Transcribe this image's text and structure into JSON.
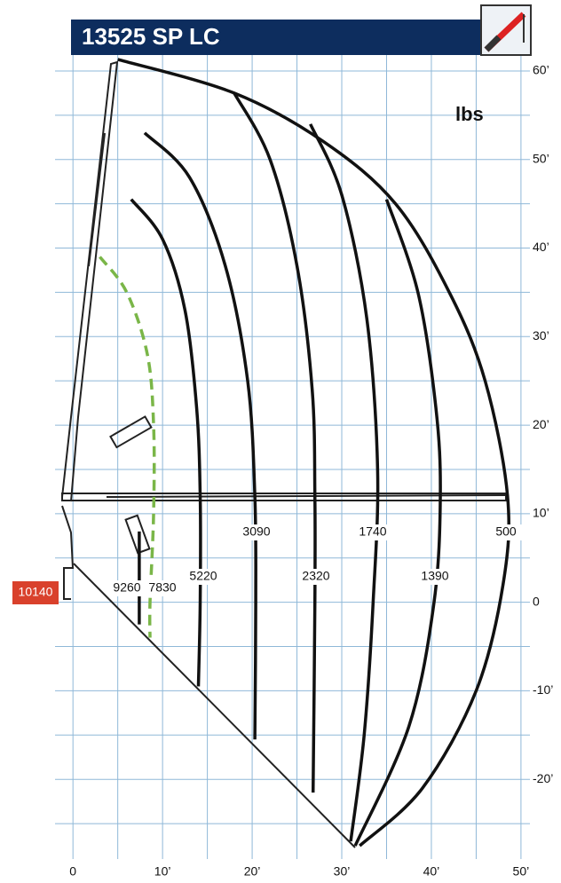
{
  "chart_data": {
    "type": "load-chart",
    "title": "13525 SP LC",
    "unit_label": "lbs",
    "base_label": "10140",
    "xlim": [
      -2,
      51
    ],
    "ylim": [
      -29,
      62
    ],
    "xticks": [
      0,
      {
        "value": 10,
        "label": "10’"
      },
      {
        "value": 20,
        "label": "20’"
      },
      {
        "value": 30,
        "label": "30’"
      },
      {
        "value": 40,
        "label": "40’"
      },
      {
        "value": 50,
        "label": "50’"
      }
    ],
    "yticks": [
      {
        "value": -20,
        "label": "-20’"
      },
      {
        "value": -10,
        "label": "-10’"
      },
      0,
      {
        "value": 10,
        "label": "10’"
      },
      {
        "value": 20,
        "label": "20’"
      },
      {
        "value": 30,
        "label": "30’"
      },
      {
        "value": 40,
        "label": "40’"
      },
      {
        "value": 50,
        "label": "50’"
      },
      {
        "value": 60,
        "label": "60’"
      }
    ],
    "grid": true,
    "grid_color": "#8fb8d8",
    "series": [
      {
        "name": "9260",
        "color": "#111111",
        "style": "solid",
        "x": [
          7.4,
          7.4
        ],
        "values": [
          8,
          -2.5
        ]
      },
      {
        "name": "7830",
        "color": "#7ab648",
        "style": "dashed",
        "x": [
          3,
          6,
          8.3,
          9,
          9,
          8.6,
          8.6
        ],
        "values": [
          39,
          35,
          28,
          20,
          10,
          0,
          -4
        ]
      },
      {
        "name": "5220",
        "color": "#111111",
        "style": "solid",
        "x": [
          6.5,
          10,
          12.5,
          13.8,
          14.2,
          14.2,
          14
        ],
        "values": [
          45.5,
          41,
          33,
          22,
          12,
          0,
          -9.5
        ]
      },
      {
        "name": "3090",
        "color": "#111111",
        "style": "solid",
        "x": [
          8,
          13,
          17,
          19.5,
          20.3,
          20.4,
          20.3
        ],
        "values": [
          53,
          48,
          38,
          25,
          12,
          0,
          -15.5
        ]
      },
      {
        "name": "2320",
        "color": "#111111",
        "style": "solid",
        "x": [
          18,
          22,
          25,
          26.7,
          27,
          27,
          26.8
        ],
        "values": [
          57.5,
          50,
          38,
          24,
          12,
          0,
          -21.5
        ]
      },
      {
        "name": "1740",
        "color": "#111111",
        "style": "solid",
        "x": [
          26.5,
          30,
          32.8,
          34,
          33.5,
          32.5,
          31
        ],
        "values": [
          54,
          46,
          32,
          15,
          0,
          -15,
          -27
        ]
      },
      {
        "name": "1390",
        "color": "#111111",
        "style": "solid",
        "x": [
          35,
          38.5,
          40.5,
          41,
          40.3,
          37.5,
          31.5
        ],
        "values": [
          45.5,
          35,
          22,
          12,
          0,
          -14,
          -27.5
        ]
      },
      {
        "name": "500",
        "color": "#111111",
        "style": "solid",
        "x": [
          5,
          18,
          28,
          36,
          42,
          46,
          48.5,
          48,
          45,
          39,
          32
        ],
        "values": [
          61.3,
          57.5,
          52,
          45,
          35,
          25,
          12,
          2,
          -10,
          -21,
          -27.5
        ]
      }
    ]
  }
}
